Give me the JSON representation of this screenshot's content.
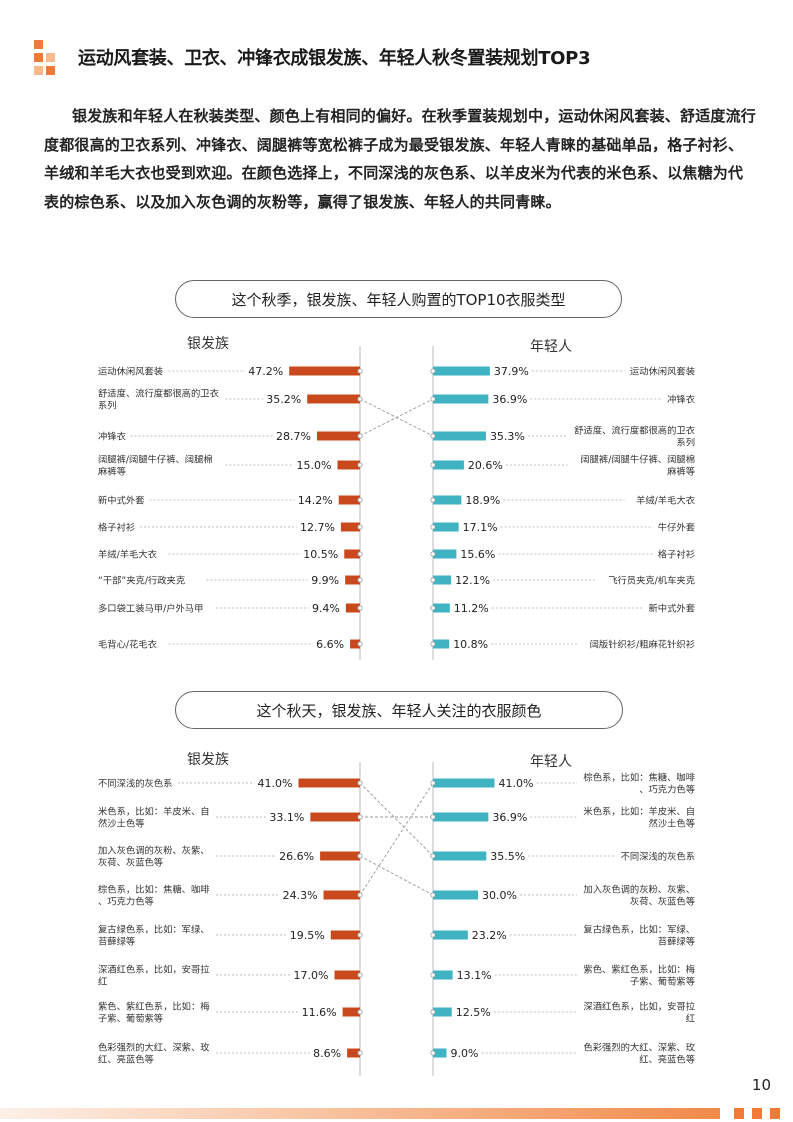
{
  "header": {
    "title": "运动风套装、卫衣、冲锋衣成银发族、年轻人秋冬置装规划TOP3"
  },
  "intro": "银发族和年轻人在秋装类型、颜色上有相同的偏好。在秋季置装规划中，运动休闲风套装、舒适度流行度都很高的卫衣系列、冲锋衣、阔腿裤等宽松裤子成为最受银发族、年轻人青睐的基础单品，格子衬衫、羊绒和羊毛大衣也受到欢迎。在颜色选择上，不同深浅的灰色系、以羊皮米为代表的米色系、以焦糖为代表的棕色系、以及加入灰色调的灰粉等，赢得了银发族、年轻人的共同青睐。",
  "colors": {
    "elder": "#c9481c",
    "young": "#3fb3c1",
    "accent": "#f07a36"
  },
  "page_number": "10",
  "chart_data": [
    {
      "type": "bar",
      "title": "这个秋季，银发族、年轻人购置的TOP10衣服类型",
      "left": {
        "name": "银发族",
        "categories": [
          "运动休闲风套装",
          "舒适度、流行度都很高的卫衣系列",
          "冲锋衣",
          "阔腿裤/阔腿牛仔裤、阔腿棉麻裤等",
          "新中式外套",
          "格子衬衫",
          "羊绒/羊毛大衣",
          "“干部”夹克/行政夹克",
          "多口袋工装马甲/户外马甲",
          "毛背心/花毛衣"
        ],
        "values": [
          47.2,
          35.2,
          28.7,
          15.0,
          14.2,
          12.7,
          10.5,
          9.9,
          9.4,
          6.6
        ],
        "labels": [
          "47.2%",
          "35.2%",
          "28.7%",
          "15.0%",
          "14.2%",
          "12.7%",
          "10.5%",
          "9.9%",
          "9.4%",
          "6.6%"
        ]
      },
      "right": {
        "name": "年轻人",
        "categories": [
          "运动休闲风套装",
          "冲锋衣",
          "舒适度、流行度都很高的卫衣系列",
          "阔腿裤/阔腿牛仔裤、阔腿棉麻裤等",
          "羊绒/羊毛大衣",
          "牛仔外套",
          "格子衬衫",
          "飞行员夹克/机车夹克",
          "新中式外套",
          "阔版针织衫/粗麻花针织衫"
        ],
        "values": [
          37.9,
          36.9,
          35.3,
          20.6,
          18.9,
          17.1,
          15.6,
          12.1,
          11.2,
          10.8
        ],
        "labels": [
          "37.9%",
          "36.9%",
          "35.3%",
          "20.6%",
          "18.9%",
          "17.1%",
          "15.6%",
          "12.1%",
          "11.2%",
          "10.8%"
        ]
      },
      "links": [
        [
          1,
          2
        ],
        [
          2,
          1
        ]
      ]
    },
    {
      "type": "bar",
      "title": "这个秋天，银发族、年轻人关注的衣服颜色",
      "left": {
        "name": "银发族",
        "categories": [
          "不同深浅的灰色系",
          "米色系，比如：羊皮米、自然沙土色等",
          "加入灰色调的灰粉、灰紫、灰荷、灰蓝色等",
          "棕色系，比如：焦糖、咖啡、巧克力色等",
          "复古绿色系，比如：军绿、苔藓绿等",
          "深酒红色系，比如，安哥拉红",
          "紫色、紫红色系，比如：梅子紫、葡萄紫等",
          "色彩强烈的大红、深紫、玫红、亮蓝色等"
        ],
        "values": [
          41.0,
          33.1,
          26.6,
          24.3,
          19.5,
          17.0,
          11.6,
          8.6
        ],
        "labels": [
          "41.0%",
          "33.1%",
          "26.6%",
          "24.3%",
          "19.5%",
          "17.0%",
          "11.6%",
          "8.6%"
        ]
      },
      "right": {
        "name": "年轻人",
        "categories": [
          "棕色系，比如：焦糖、咖啡、巧克力色等",
          "米色系，比如：羊皮米、自然沙土色等",
          "不同深浅的灰色系",
          "加入灰色调的灰粉、灰紫、灰荷、灰蓝色等",
          "复古绿色系，比如：军绿、苔藓绿等",
          "紫色、紫红色系，比如：梅子紫、葡萄紫等",
          "深酒红色系，比如，安哥拉红",
          "色彩强烈的大红、深紫、玫红、亮蓝色等"
        ],
        "values": [
          41.0,
          36.9,
          35.5,
          30.0,
          23.2,
          13.1,
          12.5,
          9.0
        ],
        "labels": [
          "41.0%",
          "36.9%",
          "35.5%",
          "30.0%",
          "23.2%",
          "13.1%",
          "12.5%",
          "9.0%"
        ]
      },
      "links": [
        [
          0,
          2
        ],
        [
          1,
          1
        ],
        [
          2,
          3
        ],
        [
          3,
          0
        ]
      ]
    }
  ]
}
